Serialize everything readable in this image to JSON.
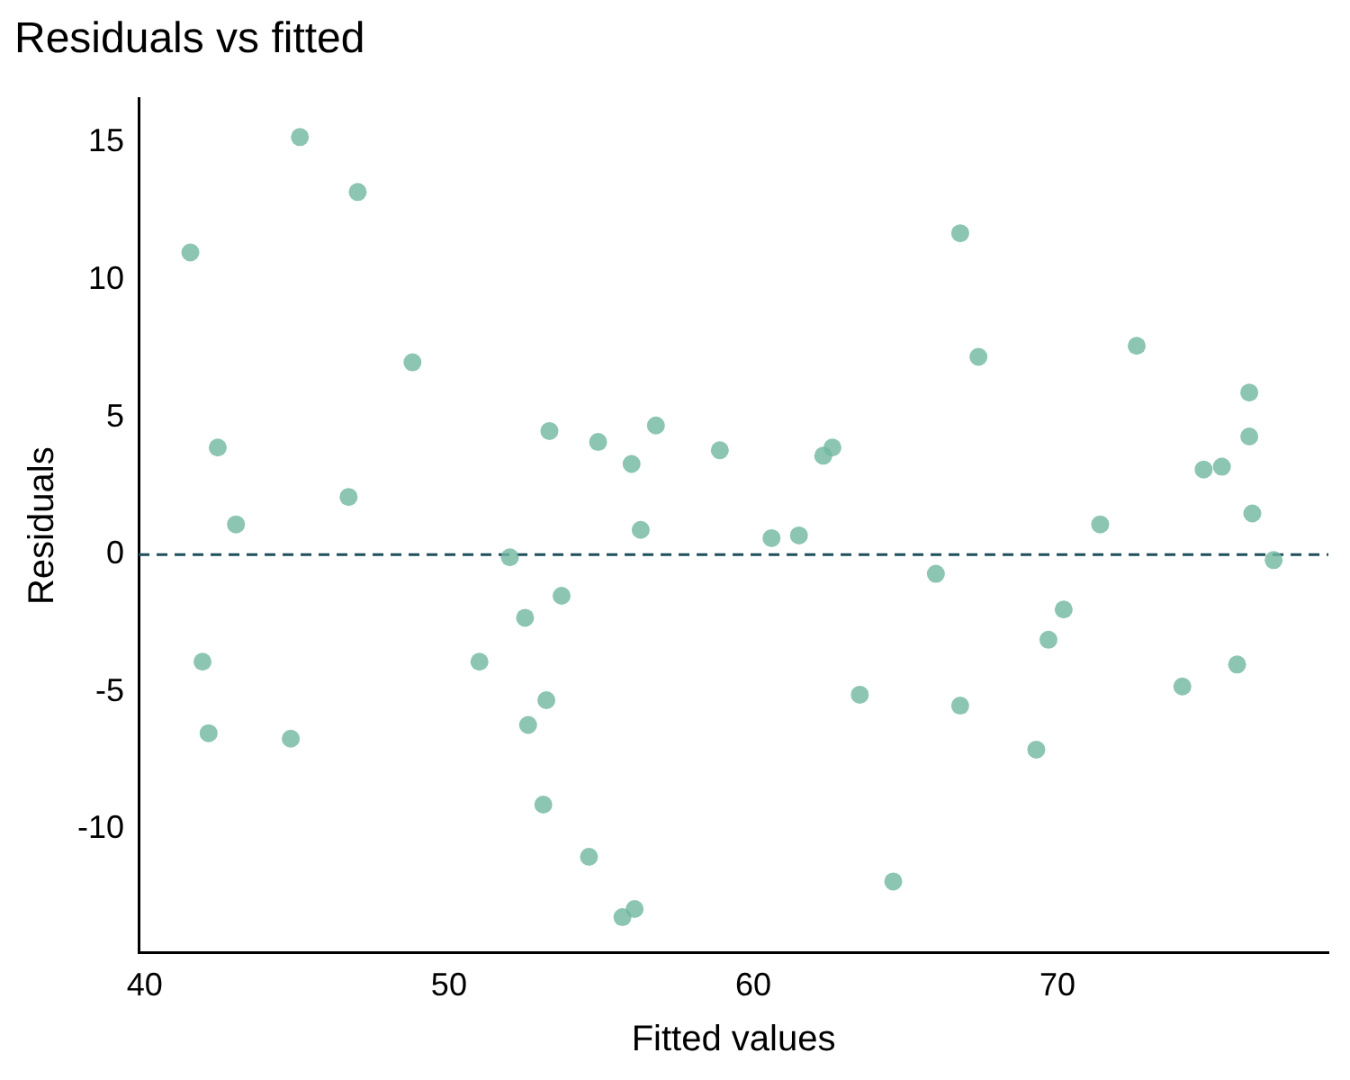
{
  "chart_data": {
    "type": "scatter",
    "title": "Residuals vs fitted",
    "xlabel": "Fitted values",
    "ylabel": "Residuals",
    "x": [
      41.5,
      45.1,
      47.0,
      48.8,
      42.4,
      43.0,
      46.7,
      41.9,
      42.1,
      44.8,
      52.0,
      51.0,
      52.5,
      52.6,
      53.2,
      53.1,
      53.7,
      53.3,
      54.9,
      56.0,
      56.8,
      56.3,
      54.6,
      55.7,
      56.1,
      58.9,
      60.6,
      61.5,
      62.3,
      62.6,
      63.5,
      64.6,
      66.0,
      66.8,
      66.8,
      67.4,
      69.3,
      69.7,
      70.2,
      71.4,
      72.6,
      74.1,
      74.8,
      75.4,
      75.9,
      76.3,
      76.3,
      76.4,
      77.1
    ],
    "series": [
      {
        "color": "#72b8a0",
        "values": [
          11.0,
          15.2,
          13.2,
          7.0,
          3.9,
          1.1,
          2.1,
          -3.9,
          -6.5,
          -6.7,
          -0.1,
          -3.9,
          -2.3,
          -6.2,
          -5.3,
          -9.1,
          -1.5,
          4.5,
          4.1,
          3.3,
          4.7,
          0.9,
          -11.0,
          -13.2,
          -12.9,
          3.8,
          0.6,
          0.7,
          3.6,
          3.9,
          -5.1,
          -11.9,
          -0.7,
          11.7,
          -5.5,
          7.2,
          -7.1,
          -3.1,
          -2.0,
          1.1,
          7.6,
          -4.8,
          3.1,
          3.2,
          -4.0,
          5.9,
          4.3,
          1.5,
          -0.2
        ]
      }
    ],
    "xlim": [
      39.8,
      78.9
    ],
    "xticks": [
      40,
      50,
      60,
      70
    ],
    "ylim": [
      -14.5,
      16.6
    ],
    "yticks": [
      -10,
      -5,
      0,
      5,
      10,
      15
    ],
    "ref_lines": [
      {
        "axis": "y",
        "value": 0,
        "color": "#1d4f5c",
        "line_style": "dashed"
      }
    ],
    "grid": false,
    "legend": false,
    "marker": "circle"
  }
}
